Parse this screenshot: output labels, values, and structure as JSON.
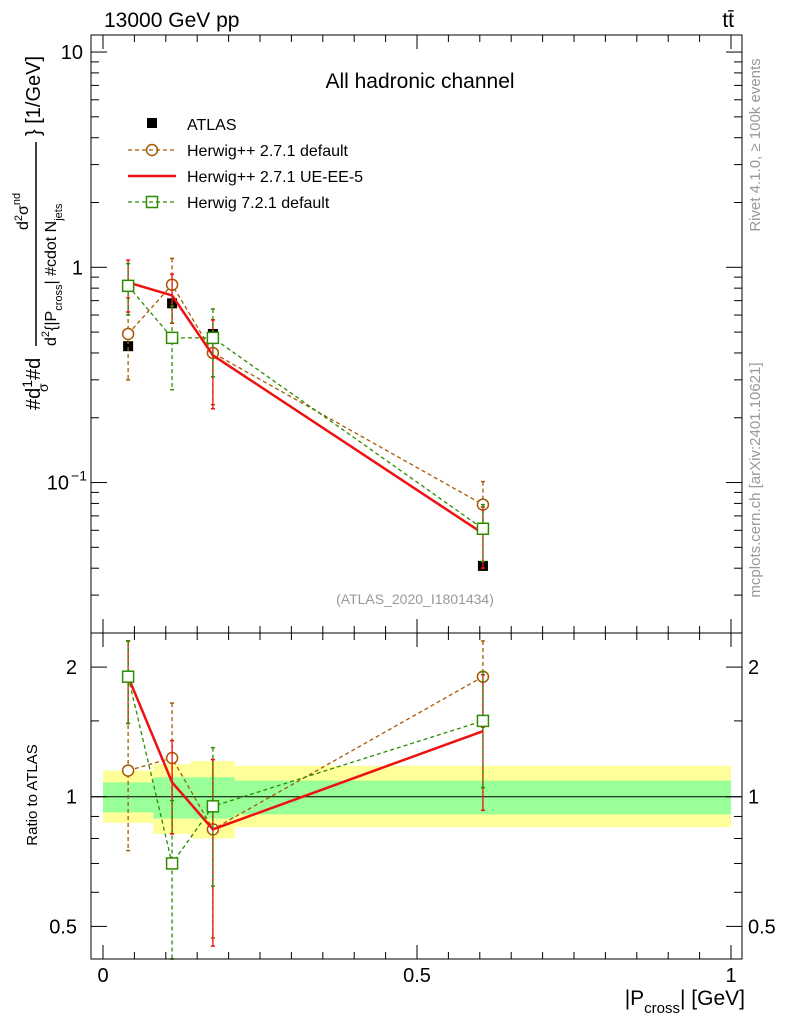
{
  "header": {
    "left": "13000 GeV pp",
    "right": "tt̄"
  },
  "side": {
    "rivet": "Rivet 4.1.0, ≥ 100k events",
    "mcplots": "mcplots.cern.ch [arXiv:2401.10621]"
  },
  "main": {
    "title": "All hadronic channel",
    "ylabel": "#d1/σ#d d²σ^nd / d²{|P_cross| #cdot N_jets} [1/GeV]",
    "ylabel_parts": {
      "a": "#d",
      "b": "1",
      "c": "σ",
      "d": "#d",
      "e": "d",
      "f": "σ",
      "g": "nd",
      "h": "d",
      "i": "2",
      "j": "{|P",
      "k": "cross",
      "l": "| #cdot N",
      "m": "jets",
      "n": "} [1/GeV]"
    },
    "analysis_id": "(ATLAS_2020_I1801434)"
  },
  "ratio": {
    "ylabel": "Ratio to ATLAS"
  },
  "xaxis": {
    "label_main": "|P",
    "label_sub": "cross",
    "label_end": "| [GeV]"
  },
  "legend": [
    {
      "label": "ATLAS"
    },
    {
      "label": "Herwig++ 2.7.1 default"
    },
    {
      "label": "Herwig++ 2.7.1 UE-EE-5"
    },
    {
      "label": "Herwig 7.2.1 default"
    }
  ],
  "colors": {
    "data": "#000000",
    "herwigpp_default": "#a65a00",
    "herwigpp_ueee5": "#ee1111",
    "herwig7": "#2e8b00",
    "band_inner": "#99ff99",
    "band_outer": "#ffff99"
  },
  "chart_data": [
    {
      "type": "scatter",
      "scale": "log",
      "title": "All hadronic channel",
      "xlim": [
        0,
        1
      ],
      "ylim": [
        0.02,
        12
      ],
      "yticks": [
        {
          "v": 0.1,
          "label": "10",
          "exp": "−1"
        },
        {
          "v": 1,
          "label": "1",
          "exp": ""
        },
        {
          "v": 10,
          "label": "10",
          "exp": ""
        }
      ],
      "xticks": [
        0,
        0.5,
        1
      ],
      "series": [
        {
          "name": "ATLAS",
          "style": "data",
          "x": [
            0.04,
            0.11,
            0.175,
            0.605
          ],
          "y": [
            0.43,
            0.68,
            0.49,
            0.041
          ],
          "err_lo": [
            0.43,
            0.68,
            0.49,
            0.041
          ],
          "err_hi": [
            0.43,
            0.68,
            0.49,
            0.041
          ]
        },
        {
          "name": "Herwig++ 2.7.1 default",
          "style": "brown",
          "x": [
            0.04,
            0.11,
            0.175,
            0.605
          ],
          "y": [
            0.49,
            0.83,
            0.4,
            0.079
          ],
          "err_lo": [
            0.3,
            0.55,
            0.23,
            0.06
          ],
          "err_hi": [
            0.72,
            1.1,
            0.57,
            0.101
          ]
        },
        {
          "name": "Herwig++ 2.7.1 UE-EE-5",
          "style": "red",
          "x": [
            0.04,
            0.11,
            0.175,
            0.605
          ],
          "y": [
            0.85,
            0.74,
            0.39,
            0.058
          ],
          "err_lo": [
            0.62,
            0.55,
            0.22,
            0.04
          ],
          "err_hi": [
            1.08,
            0.93,
            0.57,
            0.077
          ]
        },
        {
          "name": "Herwig 7.2.1 default",
          "style": "green",
          "x": [
            0.04,
            0.11,
            0.175,
            0.605
          ],
          "y": [
            0.82,
            0.47,
            0.47,
            0.061
          ],
          "err_lo": [
            0.6,
            0.27,
            0.31,
            0.043
          ],
          "err_hi": [
            1.04,
            0.66,
            0.64,
            0.079
          ]
        }
      ]
    },
    {
      "type": "scatter",
      "scale": "log",
      "ylabel": "Ratio to ATLAS",
      "xlim": [
        0,
        1
      ],
      "ylim": [
        0.42,
        2.4
      ],
      "yticks": [
        {
          "v": 0.5,
          "label": "0.5"
        },
        {
          "v": 1,
          "label": "1"
        },
        {
          "v": 2,
          "label": "2"
        }
      ],
      "bands": {
        "edges": [
          0,
          0.08,
          0.14,
          0.21,
          1
        ],
        "inner_lo": [
          0.92,
          0.89,
          0.89,
          0.91
        ],
        "inner_hi": [
          1.08,
          1.11,
          1.11,
          1.09
        ],
        "outer_lo": [
          0.87,
          0.82,
          0.8,
          0.85
        ],
        "outer_hi": [
          1.15,
          1.19,
          1.21,
          1.18
        ]
      },
      "series": [
        {
          "name": "Herwig++ 2.7.1 default",
          "style": "brown",
          "x": [
            0.04,
            0.11,
            0.175,
            0.605
          ],
          "y": [
            1.15,
            1.23,
            0.84,
            1.9
          ],
          "err_lo": [
            0.75,
            0.82,
            0.47,
            1.45
          ],
          "err_hi": [
            2.3,
            1.65,
            1.22,
            2.3
          ]
        },
        {
          "name": "Herwig++ 2.7.1 UE-EE-5",
          "style": "red",
          "x": [
            0.04,
            0.11,
            0.175,
            0.605
          ],
          "y": [
            1.9,
            1.08,
            0.84,
            1.42
          ],
          "err_lo": [
            1.48,
            0.82,
            0.45,
            0.93
          ],
          "err_hi": [
            2.3,
            1.35,
            1.22,
            1.92
          ]
        },
        {
          "name": "Herwig 7.2.1 default",
          "style": "green",
          "x": [
            0.04,
            0.11,
            0.175,
            0.605
          ],
          "y": [
            1.9,
            0.7,
            0.95,
            1.5
          ],
          "err_lo": [
            1.48,
            0.42,
            0.62,
            1.05
          ],
          "err_hi": [
            2.3,
            0.98,
            1.3,
            1.95
          ]
        }
      ]
    }
  ]
}
